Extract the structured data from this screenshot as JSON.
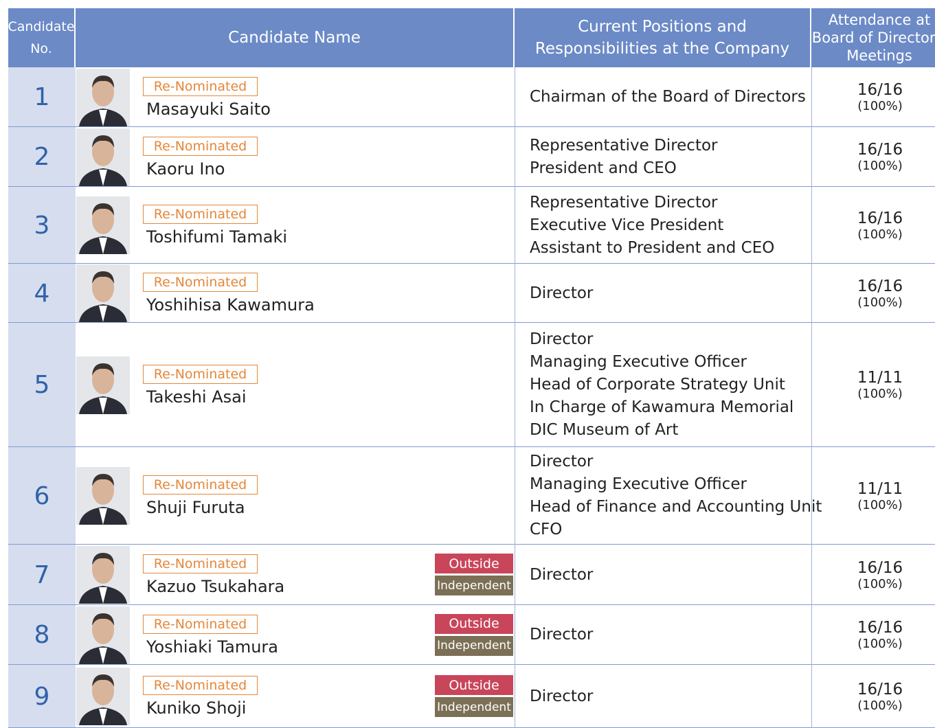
{
  "header": [
    [
      "Candidate",
      "No."
    ],
    [
      "Candidate Name"
    ],
    [
      "Current Positions and",
      "Responsibilities at the Company"
    ],
    [
      "Attendance at",
      "Board of Directors'",
      "Meetings"
    ]
  ],
  "rows": [
    {
      "no": "1",
      "tag": "Re-Nominated",
      "name": "Masayuki Saito",
      "positions": [
        "Chairman of the Board of Directors"
      ],
      "attendance": "16/16",
      "rate": "(100%)"
    },
    {
      "no": "2",
      "tag": "Re-Nominated",
      "name": "Kaoru Ino",
      "positions": [
        "Representative Director",
        "President and CEO"
      ],
      "attendance": "16/16",
      "rate": "(100%)"
    },
    {
      "no": "3",
      "tag": "Re-Nominated",
      "name": "Toshifumi Tamaki",
      "positions": [
        "Representative Director",
        "Executive Vice President",
        "Assistant to President and CEO"
      ],
      "attendance": "16/16",
      "rate": "(100%)"
    },
    {
      "no": "4",
      "tag": "Re-Nominated",
      "name": "Yoshihisa Kawamura",
      "positions": [
        "Director"
      ],
      "attendance": "16/16",
      "rate": "(100%)"
    },
    {
      "no": "5",
      "tag": "Re-Nominated",
      "name": "Takeshi Asai",
      "positions": [
        "Director",
        "Managing Executive Officer",
        "Head of Corporate Strategy Unit",
        "In Charge of Kawamura Memorial",
        "DIC Museum of Art"
      ],
      "attendance": "11/11",
      "rate": "(100%)"
    },
    {
      "no": "6",
      "tag": "Re-Nominated",
      "name": "Shuji Furuta",
      "positions": [
        "Director",
        "Managing Executive Officer",
        "Head of Finance and Accounting Unit",
        "CFO"
      ],
      "attendance": "11/11",
      "rate": "(100%)"
    },
    {
      "no": "7",
      "tag": "Re-Nominated",
      "name": "Kazuo Tsukahara",
      "outside": "Outside",
      "independent": "Independent",
      "positions": [
        "Director"
      ],
      "attendance": "16/16",
      "rate": "(100%)"
    },
    {
      "no": "8",
      "tag": "Re-Nominated",
      "name": "Yoshiaki Tamura",
      "outside": "Outside",
      "independent": "Independent",
      "positions": [
        "Director"
      ],
      "attendance": "16/16",
      "rate": "(100%)"
    },
    {
      "no": "9",
      "tag": "Re-Nominated",
      "name": "Kuniko Shoji",
      "outside": "Outside",
      "independent": "Independent",
      "positions": [
        "Director"
      ],
      "attendance": "16/16",
      "rate": "(100%)"
    }
  ]
}
